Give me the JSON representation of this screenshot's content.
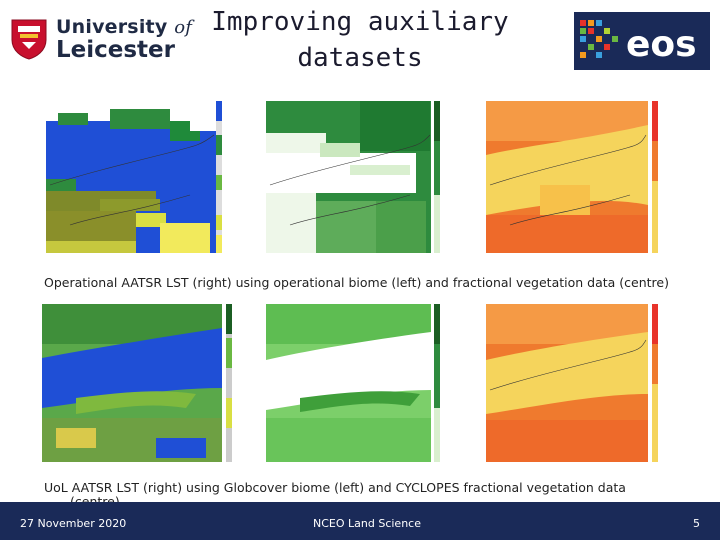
{
  "header": {
    "university_line1": "University",
    "university_of": "of",
    "university_line2": "Leicester",
    "title_line1": "Improving auxiliary",
    "title_line2": "datasets",
    "eos_logo_text": "eos"
  },
  "captions": {
    "top": "Operational AATSR LST (right) using operational biome (left) and fractional vegetation data (centre)",
    "bottom_line1": "UoL AATSR LST (right) using Globcover biome (left) and CYCLOPES fractional vegetation data",
    "bottom_line2": "(centre)"
  },
  "footer": {
    "date": "27 November 2020",
    "organisation": "NCEO Land Science",
    "page": "5"
  },
  "colors": {
    "footer_bg": "#1a2a58",
    "biome_blue": "#1f4fd6",
    "vegetation_green": "#2e8b3e",
    "lst_orange": "#ef7a2e",
    "lst_yellow": "#f5d45c"
  },
  "panels": [
    {
      "name": "operational-biome-map"
    },
    {
      "name": "operational-fractional-vegetation-map"
    },
    {
      "name": "operational-lst-map"
    },
    {
      "name": "globcover-biome-map"
    },
    {
      "name": "cyclopes-fractional-vegetation-map"
    },
    {
      "name": "uol-lst-map"
    }
  ]
}
